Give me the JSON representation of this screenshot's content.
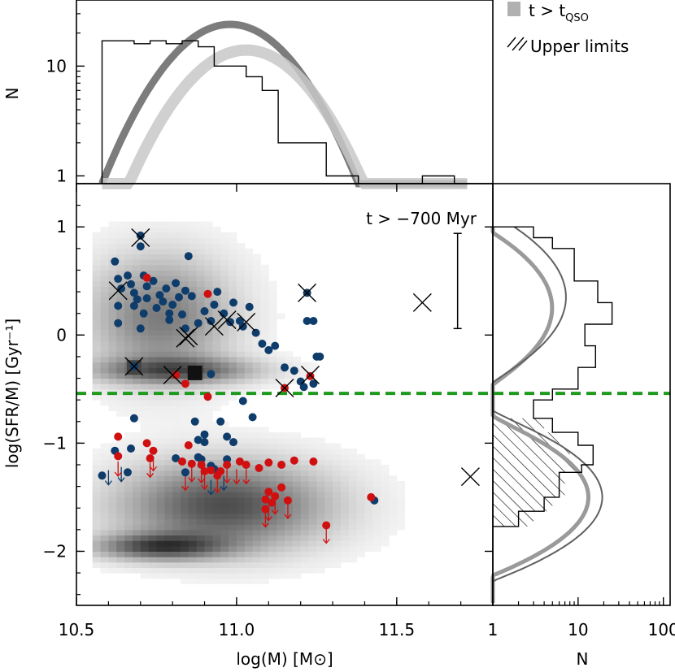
{
  "chart_data": [
    {
      "panel": "main-scatter",
      "type": "scatter",
      "xlabel": "log(M)  [M⊙]",
      "ylabel": "log(SFR/M)  [Gyr⁻¹]",
      "xlim": [
        10.5,
        11.8
      ],
      "ylim": [
        -2.5,
        1.4
      ],
      "x_ticks": [
        10.5,
        11.0,
        11.5
      ],
      "x_tick_labels": [
        "10.5",
        "11.0",
        "11.5"
      ],
      "y_ticks": [
        -2,
        -1,
        0,
        1
      ],
      "y_tick_labels": [
        "−2",
        "−1",
        "0",
        "1"
      ],
      "annotation": "t > −700 Myr",
      "threshold_line": {
        "y": -0.54,
        "color": "#1f9a1f",
        "style": "dashed"
      },
      "error_bar": {
        "x": 11.69,
        "y_low": 0.06,
        "y_high": 0.94
      },
      "colors": {
        "blue": "#0f3d6b",
        "red": "#d01010",
        "cross": "#000000"
      },
      "series": [
        {
          "name": "blue points",
          "color": "blue",
          "points": [
            [
              10.62,
              0.68
            ],
            [
              10.63,
              0.52
            ],
            [
              10.64,
              0.43
            ],
            [
              10.63,
              0.27
            ],
            [
              10.63,
              0.11
            ],
            [
              10.66,
              0.55
            ],
            [
              10.67,
              0.47
            ],
            [
              10.68,
              0.39
            ],
            [
              10.68,
              0.27
            ],
            [
              10.7,
              0.92
            ],
            [
              10.7,
              0.82
            ],
            [
              10.69,
              0.33
            ],
            [
              10.71,
              0.55
            ],
            [
              10.72,
              0.45
            ],
            [
              10.71,
              0.2
            ],
            [
              10.7,
              0.06
            ],
            [
              10.72,
              0.34
            ],
            [
              10.74,
              0.5
            ],
            [
              10.75,
              0.25
            ],
            [
              10.76,
              0.37
            ],
            [
              10.78,
              0.43
            ],
            [
              10.77,
              0.31
            ],
            [
              10.79,
              0.2
            ],
            [
              10.8,
              0.28
            ],
            [
              10.79,
              0.14
            ],
            [
              10.81,
              0.48
            ],
            [
              10.82,
              0.35
            ],
            [
              10.83,
              0.19
            ],
            [
              10.84,
              0.41
            ],
            [
              10.84,
              0.06
            ],
            [
              10.85,
              0.73
            ],
            [
              10.86,
              0.36
            ],
            [
              10.88,
              0.11
            ],
            [
              10.9,
              0.22
            ],
            [
              10.92,
              0.13
            ],
            [
              10.93,
              0.28
            ],
            [
              10.94,
              0.4
            ],
            [
              10.96,
              0.2
            ],
            [
              10.98,
              0.12
            ],
            [
              10.99,
              0.3
            ],
            [
              11.01,
              0.13
            ],
            [
              11.02,
              0.08
            ],
            [
              11.04,
              0.26
            ],
            [
              11.06,
              0.02
            ],
            [
              11.08,
              -0.08
            ],
            [
              11.1,
              -0.14
            ],
            [
              11.12,
              -0.1
            ],
            [
              11.15,
              -0.3
            ],
            [
              11.18,
              -0.33
            ],
            [
              11.2,
              -0.43
            ],
            [
              11.22,
              0.39
            ],
            [
              11.22,
              0.13
            ],
            [
              11.24,
              0.13
            ],
            [
              11.25,
              -0.2
            ],
            [
              11.26,
              -0.2
            ],
            [
              11.24,
              -0.45
            ],
            [
              11.21,
              -0.48
            ],
            [
              10.92,
              -0.36
            ],
            [
              11.02,
              -0.61
            ],
            [
              10.68,
              -0.29
            ],
            [
              10.62,
              -1.07
            ],
            [
              10.67,
              -1.05
            ],
            [
              10.68,
              -0.77
            ],
            [
              10.66,
              -1.27
            ],
            [
              10.84,
              -1.27
            ],
            [
              10.87,
              -0.8
            ],
            [
              10.88,
              -0.97
            ],
            [
              10.9,
              -0.92
            ],
            [
              10.88,
              -1.13
            ],
            [
              10.92,
              -1.21
            ],
            [
              10.95,
              -0.8
            ],
            [
              10.97,
              -0.94
            ],
            [
              10.97,
              -1.15
            ],
            [
              10.99,
              -0.99
            ],
            [
              11.05,
              -0.76
            ],
            [
              11.43,
              -1.53
            ],
            [
              10.89,
              -1.15
            ],
            [
              10.9,
              -0.99
            ],
            [
              10.93,
              -1.24
            ],
            [
              10.81,
              -1.14
            ],
            [
              10.58,
              -1.3
            ]
          ]
        },
        {
          "name": "red points",
          "color": "red",
          "points": [
            [
              10.63,
              -0.94
            ],
            [
              10.63,
              -1.12
            ],
            [
              10.72,
              -1.0
            ],
            [
              10.74,
              -1.07
            ],
            [
              10.73,
              -1.14
            ],
            [
              10.83,
              -1.17
            ],
            [
              10.85,
              -1.02
            ],
            [
              10.86,
              -1.19
            ],
            [
              10.89,
              -1.2
            ],
            [
              10.9,
              -1.26
            ],
            [
              10.92,
              -1.25
            ],
            [
              10.94,
              -1.3
            ],
            [
              10.95,
              -1.26
            ],
            [
              10.97,
              -1.2
            ],
            [
              11.01,
              -1.17
            ],
            [
              11.03,
              -1.2
            ],
            [
              11.07,
              -1.23
            ],
            [
              11.1,
              -1.18
            ],
            [
              11.14,
              -1.2
            ],
            [
              11.18,
              -1.16
            ],
            [
              11.24,
              -1.17
            ],
            [
              11.09,
              -1.52
            ],
            [
              11.09,
              -1.61
            ],
            [
              11.1,
              -1.45
            ],
            [
              11.11,
              -1.55
            ],
            [
              11.12,
              -1.49
            ],
            [
              11.14,
              -1.41
            ],
            [
              11.16,
              -1.53
            ],
            [
              11.28,
              -1.76
            ],
            [
              11.42,
              -1.5
            ],
            [
              10.72,
              0.53
            ],
            [
              10.91,
              0.38
            ],
            [
              10.81,
              -0.37
            ],
            [
              10.84,
              -0.45
            ],
            [
              10.91,
              -0.57
            ],
            [
              11.15,
              -0.49
            ],
            [
              11.23,
              -0.38
            ]
          ]
        }
      ],
      "upper_limit_arrows": [
        [
          10.6,
          -1.25,
          "blue"
        ],
        [
          10.64,
          -1.22,
          "blue"
        ],
        [
          10.63,
          -1.17,
          "red"
        ],
        [
          10.74,
          -1.12,
          "red"
        ],
        [
          10.73,
          -1.18,
          "red"
        ],
        [
          10.86,
          -1.22,
          "red"
        ],
        [
          10.89,
          -1.23,
          "red"
        ],
        [
          10.9,
          -1.29,
          "red"
        ],
        [
          10.92,
          -1.34,
          "blue"
        ],
        [
          10.94,
          -1.32,
          "red"
        ],
        [
          10.97,
          -1.23,
          "red"
        ],
        [
          11.03,
          -1.24,
          "red"
        ],
        [
          11.09,
          -1.64,
          "red"
        ],
        [
          11.1,
          -1.58,
          "red"
        ],
        [
          11.16,
          -1.56,
          "red"
        ],
        [
          11.28,
          -1.79,
          "red"
        ],
        [
          10.84,
          -1.3,
          "red"
        ],
        [
          10.96,
          -1.3,
          "blue"
        ],
        [
          11.0,
          -1.24,
          "red"
        ],
        [
          11.12,
          -1.52,
          "red"
        ]
      ],
      "crossed_points": [
        [
          10.7,
          0.9
        ],
        [
          10.63,
          0.41
        ],
        [
          10.84,
          -0.03
        ],
        [
          10.85,
          -0.01
        ],
        [
          10.93,
          0.08
        ],
        [
          10.97,
          0.14
        ],
        [
          11.03,
          0.12
        ],
        [
          11.22,
          0.39
        ],
        [
          11.58,
          0.3
        ],
        [
          10.68,
          -0.29
        ],
        [
          10.8,
          -0.37
        ],
        [
          11.15,
          -0.49
        ],
        [
          11.23,
          -0.37
        ],
        [
          11.73,
          -1.31
        ]
      ],
      "square_markers": [
        {
          "x": 10.68,
          "y": -0.3,
          "color": "#444444"
        },
        {
          "x": 10.87,
          "y": -0.35,
          "color": "#111111"
        }
      ],
      "density_background": "gray shaded 2D histogram of model galaxies"
    },
    {
      "panel": "top-histogram",
      "type": "bar",
      "ylabel": "N",
      "yscale": "log",
      "ylim": [
        0.85,
        40
      ],
      "y_ticks": [
        1,
        10
      ],
      "y_tick_labels": [
        "1",
        "10"
      ],
      "bin_edges": [
        10.58,
        10.63,
        10.68,
        10.73,
        10.78,
        10.83,
        10.88,
        10.93,
        10.98,
        11.03,
        11.08,
        11.13,
        11.18,
        11.23,
        11.28,
        11.33,
        11.38,
        11.43,
        11.48,
        11.53,
        11.58,
        11.63,
        11.68,
        11.73
      ],
      "counts": [
        17,
        17,
        16,
        17,
        16,
        17,
        15,
        10,
        10,
        8,
        6,
        2,
        2,
        2,
        1,
        1,
        0.85,
        0.85,
        0.85,
        0.85,
        1,
        1,
        0.85
      ]
    },
    {
      "panel": "right-histogram",
      "type": "bar",
      "orientation": "horizontal",
      "xlabel": "N",
      "xscale": "log",
      "xlim": [
        1,
        120
      ],
      "x_ticks": [
        1,
        10,
        100
      ],
      "x_tick_labels": [
        "1",
        "10",
        "100"
      ],
      "bin_edges": [
        1.0,
        0.9,
        0.8,
        0.5,
        0.3,
        0.1,
        -0.1,
        -0.3,
        -0.5,
        -0.6,
        -0.77,
        -0.9,
        -1.02,
        -1.2,
        -1.27,
        -1.5,
        -1.63,
        -1.77
      ],
      "counts": [
        3,
        5,
        9,
        17,
        25,
        12,
        16,
        10,
        5,
        3,
        5,
        10,
        15,
        11,
        6,
        4,
        2
      ],
      "upper_limits_counts": [
        4,
        6,
        8,
        11,
        7,
        5,
        3,
        2
      ]
    }
  ],
  "legend": {
    "entries": [
      {
        "label": "t > t",
        "sub": "QSO",
        "color": "#b0b0b0",
        "style": "filled"
      },
      {
        "label": "Upper limits",
        "style": "hatched"
      }
    ]
  }
}
